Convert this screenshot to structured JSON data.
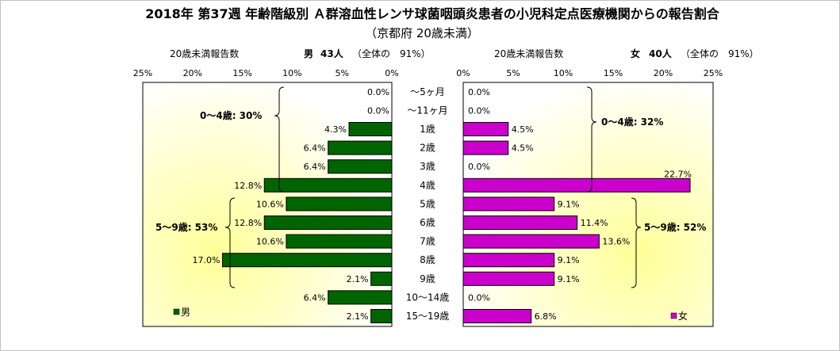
{
  "title": "2018年 第37週 年齢階級別 Ａ群溶血性レンサ球菌咽頭炎患者の小児科定点医療機関からの報告割合",
  "subtitle": "（京都府 20歳未満）",
  "chart_data": {
    "type": "bar",
    "orientation": "horizontal-butterfly",
    "categories": [
      "～5ヶ月",
      "～11ヶ月",
      "1歳",
      "2歳",
      "3歳",
      "4歳",
      "5歳",
      "6歳",
      "7歳",
      "8歳",
      "9歳",
      "10～14歳",
      "15～19歳"
    ],
    "xlim": [
      0,
      25
    ],
    "x_ticks": [
      "0%",
      "5%",
      "10%",
      "15%",
      "20%",
      "25%"
    ],
    "series": [
      {
        "name": "男",
        "side": "left",
        "color": "#006400",
        "values": [
          0.0,
          0.0,
          4.3,
          6.4,
          6.4,
          12.8,
          10.6,
          12.8,
          10.6,
          17.0,
          2.1,
          6.4,
          2.1
        ],
        "labels": [
          "0.0%",
          "0.0%",
          "4.3%",
          "6.4%",
          "6.4%",
          "12.8%",
          "10.6%",
          "12.8%",
          "10.6%",
          "17.0%",
          "2.1%",
          "6.4%",
          "2.1%"
        ],
        "header_count_label": "20歳未満報告数",
        "header_sex": "男",
        "header_count": "43人",
        "header_share": "（全体の　91%）",
        "group_labels": [
          "0～4歳: 30%",
          "5～9歳: 53%"
        ]
      },
      {
        "name": "女",
        "side": "right",
        "color": "#CC00CC",
        "values": [
          0.0,
          0.0,
          4.5,
          4.5,
          0.0,
          22.7,
          9.1,
          11.4,
          13.6,
          9.1,
          9.1,
          0.0,
          6.8
        ],
        "labels": [
          "0.0%",
          "0.0%",
          "4.5%",
          "4.5%",
          "0.0%",
          "22.7%",
          "9.1%",
          "11.4%",
          "13.6%",
          "9.1%",
          "9.1%",
          "0.0%",
          "6.8%"
        ],
        "header_count_label": "20歳未満報告数",
        "header_sex": "女",
        "header_count": "40人",
        "header_share": "（全体の　91%）",
        "group_labels": [
          "0～4歳: 32%",
          "5～9歳: 52%"
        ]
      }
    ],
    "legend": [
      "男",
      "女"
    ],
    "plot_background": "yellow radial gradient",
    "colors": {
      "male": "#006400",
      "female": "#CC00CC",
      "border": "#000000"
    }
  }
}
